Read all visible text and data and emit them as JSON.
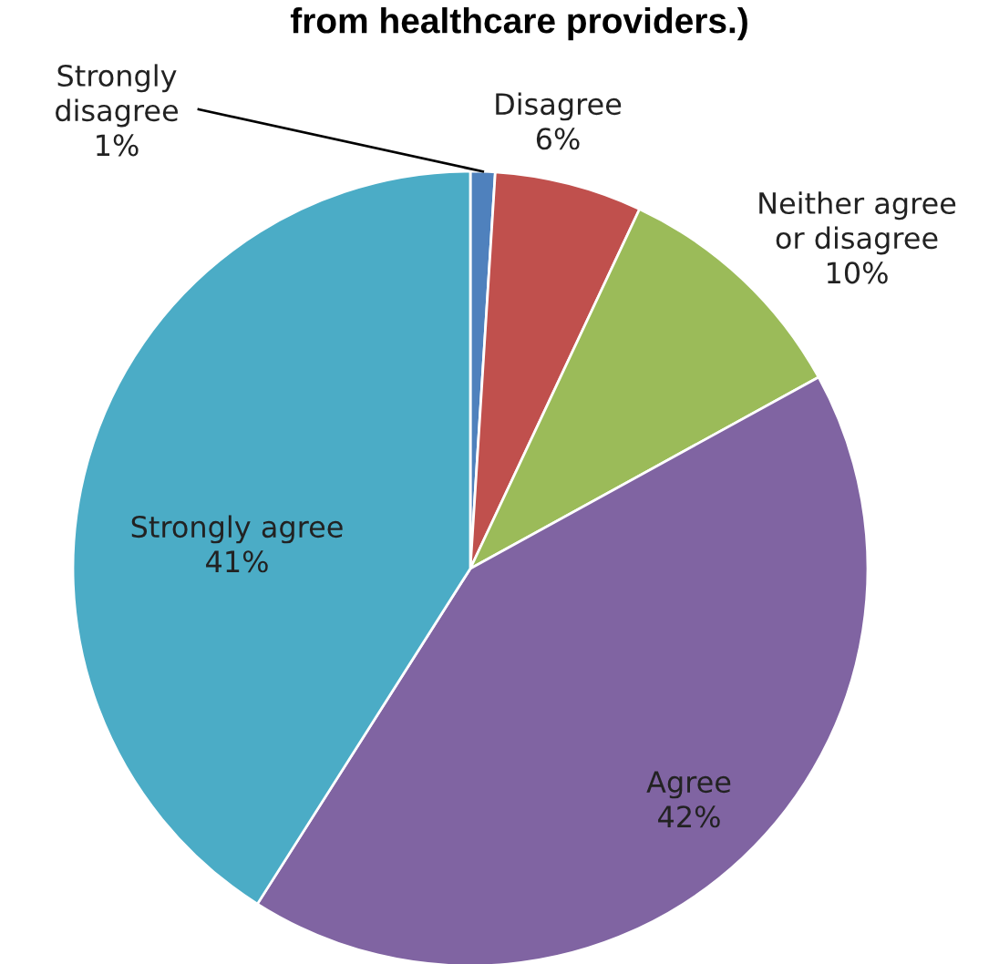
{
  "chart_data": {
    "type": "pie",
    "title": "from healthcare providers.)",
    "categories": [
      "Strongly disagree",
      "Disagree",
      "Neither agree or disagree",
      "Agree",
      "Strongly agree"
    ],
    "values": [
      1,
      6,
      10,
      42,
      41
    ],
    "colors": [
      "#4f81bd",
      "#c0504d",
      "#9bbb59",
      "#8064a2",
      "#4bacc6"
    ],
    "value_labels": [
      "1%",
      "6%",
      "10%",
      "42%",
      "41%"
    ],
    "legend": false
  }
}
